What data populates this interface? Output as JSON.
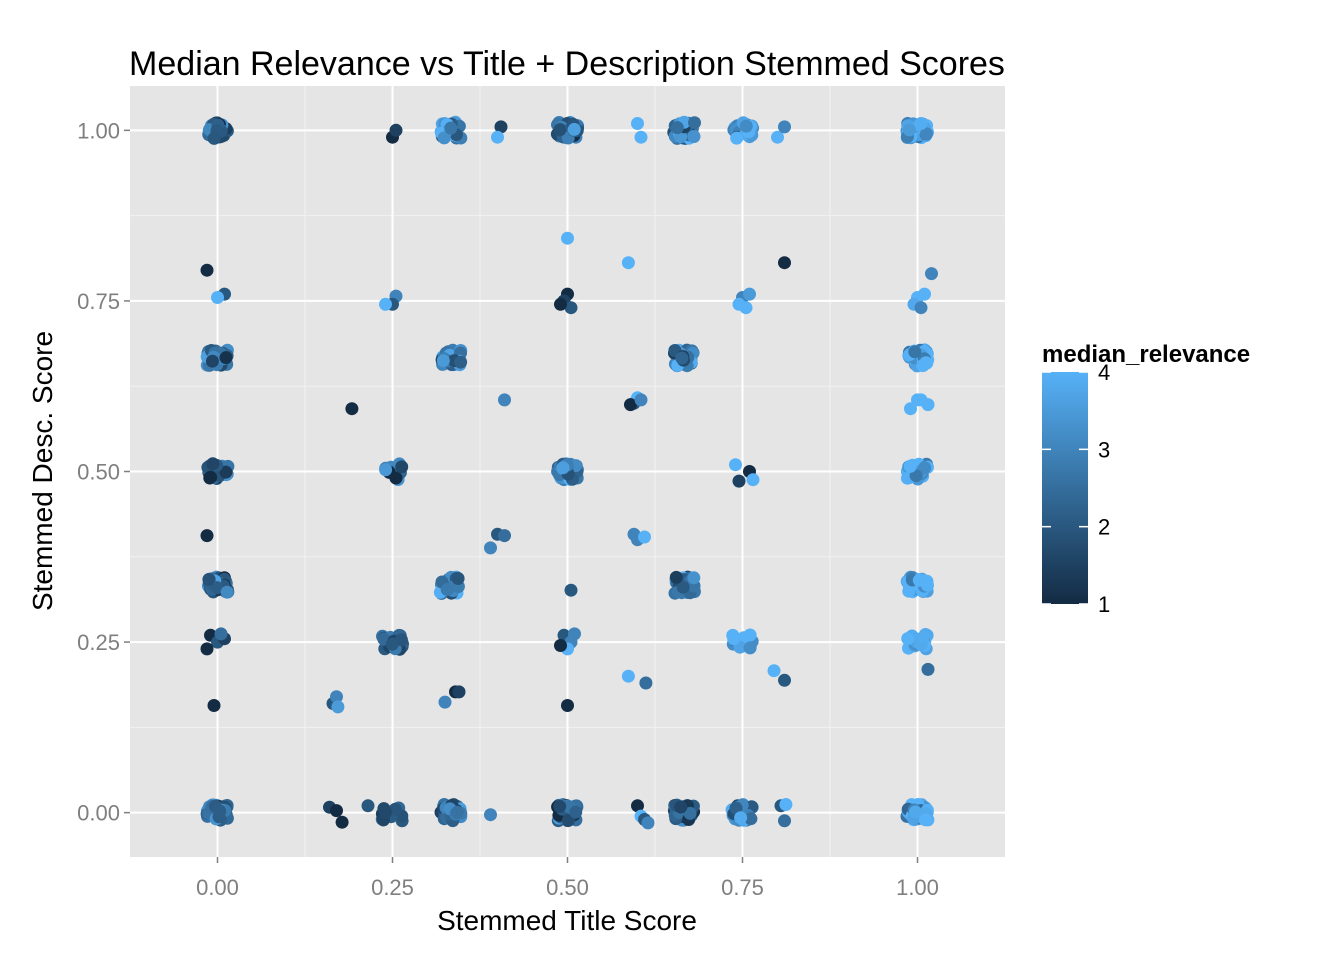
{
  "chart_data": {
    "type": "scatter",
    "title": "Median Relevance vs Title + Description Stemmed Scores",
    "xlabel": "Stemmed Title Score",
    "ylabel": "Stemmed Desc. Score",
    "xlim": [
      -0.125,
      1.125
    ],
    "ylim": [
      -0.065,
      1.065
    ],
    "x_ticks": [
      "0.00",
      "0.25",
      "0.50",
      "0.75",
      "1.00"
    ],
    "y_ticks": [
      "0.00",
      "0.25",
      "0.50",
      "0.75",
      "1.00"
    ],
    "grid": true,
    "background": "#E5E5E5",
    "color_scale": {
      "name": "median_relevance",
      "low": "#132B43",
      "high": "#56B1F7",
      "limits": [
        1,
        4
      ],
      "breaks": [
        "1",
        "2",
        "3",
        "4"
      ],
      "position": "right"
    },
    "clusters": [
      {
        "x": 0.0,
        "y": 1.0,
        "n": 40,
        "mean": 2.0
      },
      {
        "x": 0.3333,
        "y": 1.0,
        "n": 30,
        "mean": 3.2
      },
      {
        "x": 0.5,
        "y": 1.0,
        "n": 40,
        "mean": 2.2
      },
      {
        "x": 0.6667,
        "y": 1.0,
        "n": 40,
        "mean": 2.6
      },
      {
        "x": 0.75,
        "y": 1.0,
        "n": 25,
        "mean": 3.3
      },
      {
        "x": 1.0,
        "y": 1.0,
        "n": 45,
        "mean": 3.9
      },
      {
        "x": 0.0,
        "y": 0.6667,
        "n": 35,
        "mean": 2.4
      },
      {
        "x": 0.3333,
        "y": 0.6667,
        "n": 30,
        "mean": 2.8
      },
      {
        "x": 0.6667,
        "y": 0.6667,
        "n": 35,
        "mean": 2.8
      },
      {
        "x": 1.0,
        "y": 0.6667,
        "n": 35,
        "mean": 3.7
      },
      {
        "x": 0.0,
        "y": 0.5,
        "n": 40,
        "mean": 2.0
      },
      {
        "x": 0.25,
        "y": 0.5,
        "n": 12,
        "mean": 2.0
      },
      {
        "x": 0.5,
        "y": 0.5,
        "n": 35,
        "mean": 3.1
      },
      {
        "x": 1.0,
        "y": 0.5,
        "n": 35,
        "mean": 3.6
      },
      {
        "x": 0.0,
        "y": 0.3333,
        "n": 35,
        "mean": 2.4
      },
      {
        "x": 0.3333,
        "y": 0.3333,
        "n": 30,
        "mean": 2.8
      },
      {
        "x": 0.6667,
        "y": 0.3333,
        "n": 30,
        "mean": 2.8
      },
      {
        "x": 1.0,
        "y": 0.3333,
        "n": 35,
        "mean": 3.6
      },
      {
        "x": 0.25,
        "y": 0.25,
        "n": 25,
        "mean": 2.2
      },
      {
        "x": 0.75,
        "y": 0.25,
        "n": 14,
        "mean": 3.7
      },
      {
        "x": 1.0,
        "y": 0.25,
        "n": 18,
        "mean": 3.8
      },
      {
        "x": 0.0,
        "y": 0.0,
        "n": 40,
        "mean": 2.3
      },
      {
        "x": 0.25,
        "y": 0.0,
        "n": 12,
        "mean": 2.0
      },
      {
        "x": 0.3333,
        "y": 0.0,
        "n": 30,
        "mean": 2.3
      },
      {
        "x": 0.5,
        "y": 0.0,
        "n": 40,
        "mean": 2.2
      },
      {
        "x": 0.6667,
        "y": 0.0,
        "n": 35,
        "mean": 2.2
      },
      {
        "x": 0.75,
        "y": 0.0,
        "n": 25,
        "mean": 3.0
      },
      {
        "x": 1.0,
        "y": 0.0,
        "n": 40,
        "mean": 3.6
      }
    ],
    "points": [
      {
        "x": 0.25,
        "y": 0.99,
        "v": 1
      },
      {
        "x": 0.255,
        "y": 1.0,
        "v": 1.5
      },
      {
        "x": 0.405,
        "y": 1.005,
        "v": 1.5
      },
      {
        "x": 0.4,
        "y": 0.99,
        "v": 4
      },
      {
        "x": 0.6,
        "y": 1.01,
        "v": 4
      },
      {
        "x": 0.605,
        "y": 0.99,
        "v": 4
      },
      {
        "x": 0.8,
        "y": 0.99,
        "v": 4
      },
      {
        "x": 0.81,
        "y": 1.005,
        "v": 3
      },
      {
        "x": 0.5,
        "y": 0.842,
        "v": 4
      },
      {
        "x": 0.587,
        "y": 0.806,
        "v": 4
      },
      {
        "x": 0.81,
        "y": 0.806,
        "v": 1
      },
      {
        "x": -0.015,
        "y": 0.795,
        "v": 1
      },
      {
        "x": 0.01,
        "y": 0.76,
        "v": 2
      },
      {
        "x": 0.0,
        "y": 0.755,
        "v": 4
      },
      {
        "x": 1.02,
        "y": 0.79,
        "v": 3
      },
      {
        "x": 0.255,
        "y": 0.757,
        "v": 3
      },
      {
        "x": 0.25,
        "y": 0.745,
        "v": 2
      },
      {
        "x": 0.24,
        "y": 0.745,
        "v": 4
      },
      {
        "x": 0.5,
        "y": 0.76,
        "v": 1
      },
      {
        "x": 0.495,
        "y": 0.75,
        "v": 1.5
      },
      {
        "x": 0.505,
        "y": 0.74,
        "v": 2
      },
      {
        "x": 0.49,
        "y": 0.745,
        "v": 1
      },
      {
        "x": 0.75,
        "y": 0.755,
        "v": 3
      },
      {
        "x": 0.745,
        "y": 0.745,
        "v": 4
      },
      {
        "x": 0.76,
        "y": 0.76,
        "v": 3.5
      },
      {
        "x": 0.755,
        "y": 0.74,
        "v": 4
      },
      {
        "x": 1.0,
        "y": 0.755,
        "v": 4
      },
      {
        "x": 0.995,
        "y": 0.745,
        "v": 3.8
      },
      {
        "x": 1.01,
        "y": 0.76,
        "v": 4
      },
      {
        "x": 1.005,
        "y": 0.74,
        "v": 3
      },
      {
        "x": 0.192,
        "y": 0.592,
        "v": 1
      },
      {
        "x": 0.41,
        "y": 0.605,
        "v": 3
      },
      {
        "x": 0.595,
        "y": 0.6,
        "v": 2
      },
      {
        "x": 0.6,
        "y": 0.608,
        "v": 4
      },
      {
        "x": 0.59,
        "y": 0.598,
        "v": 1
      },
      {
        "x": 0.605,
        "y": 0.605,
        "v": 3
      },
      {
        "x": 0.99,
        "y": 0.592,
        "v": 4
      },
      {
        "x": 1.0,
        "y": 0.605,
        "v": 4
      },
      {
        "x": 1.015,
        "y": 0.598,
        "v": 4
      },
      {
        "x": 1.005,
        "y": 0.605,
        "v": 4
      },
      {
        "x": 0.74,
        "y": 0.51,
        "v": 4
      },
      {
        "x": 0.76,
        "y": 0.5,
        "v": 1
      },
      {
        "x": 0.745,
        "y": 0.486,
        "v": 1.5
      },
      {
        "x": 0.765,
        "y": 0.488,
        "v": 4
      },
      {
        "x": -0.015,
        "y": 0.406,
        "v": 1
      },
      {
        "x": 0.4,
        "y": 0.408,
        "v": 2
      },
      {
        "x": 0.41,
        "y": 0.406,
        "v": 2.5
      },
      {
        "x": 0.39,
        "y": 0.388,
        "v": 3
      },
      {
        "x": 0.595,
        "y": 0.408,
        "v": 3
      },
      {
        "x": 0.6,
        "y": 0.4,
        "v": 3
      },
      {
        "x": 0.61,
        "y": 0.404,
        "v": 4
      },
      {
        "x": 0.505,
        "y": 0.326,
        "v": 2
      },
      {
        "x": -0.01,
        "y": 0.26,
        "v": 1
      },
      {
        "x": 0.0,
        "y": 0.25,
        "v": 2
      },
      {
        "x": 0.01,
        "y": 0.255,
        "v": 1.5
      },
      {
        "x": -0.015,
        "y": 0.24,
        "v": 1
      },
      {
        "x": 0.005,
        "y": 0.262,
        "v": 2.5
      },
      {
        "x": 0.495,
        "y": 0.26,
        "v": 2
      },
      {
        "x": 0.505,
        "y": 0.25,
        "v": 3
      },
      {
        "x": 0.5,
        "y": 0.24,
        "v": 4
      },
      {
        "x": 0.49,
        "y": 0.245,
        "v": 1
      },
      {
        "x": 0.51,
        "y": 0.262,
        "v": 3
      },
      {
        "x": -0.005,
        "y": 0.157,
        "v": 1
      },
      {
        "x": 0.165,
        "y": 0.16,
        "v": 2
      },
      {
        "x": 0.17,
        "y": 0.17,
        "v": 3
      },
      {
        "x": 0.172,
        "y": 0.155,
        "v": 3.5
      },
      {
        "x": 0.325,
        "y": 0.162,
        "v": 3
      },
      {
        "x": 0.34,
        "y": 0.177,
        "v": 1
      },
      {
        "x": 0.345,
        "y": 0.177,
        "v": 1.5
      },
      {
        "x": 0.5,
        "y": 0.157,
        "v": 1
      },
      {
        "x": 0.587,
        "y": 0.2,
        "v": 4
      },
      {
        "x": 0.612,
        "y": 0.19,
        "v": 2.5
      },
      {
        "x": 0.795,
        "y": 0.208,
        "v": 4
      },
      {
        "x": 0.81,
        "y": 0.194,
        "v": 2
      },
      {
        "x": 1.015,
        "y": 0.21,
        "v": 2.5
      },
      {
        "x": 0.16,
        "y": 0.008,
        "v": 1.5
      },
      {
        "x": 0.17,
        "y": 0.003,
        "v": 1
      },
      {
        "x": 0.178,
        "y": -0.014,
        "v": 1
      },
      {
        "x": 0.215,
        "y": 0.01,
        "v": 2
      },
      {
        "x": 0.39,
        "y": -0.003,
        "v": 3
      },
      {
        "x": 0.6,
        "y": 0.01,
        "v": 1
      },
      {
        "x": 0.605,
        "y": -0.005,
        "v": 4
      },
      {
        "x": 0.61,
        "y": -0.01,
        "v": 2
      },
      {
        "x": 0.615,
        "y": -0.015,
        "v": 3
      },
      {
        "x": 0.805,
        "y": 0.01,
        "v": 2
      },
      {
        "x": 0.812,
        "y": 0.012,
        "v": 4
      },
      {
        "x": 0.81,
        "y": -0.012,
        "v": 2.5
      }
    ]
  }
}
